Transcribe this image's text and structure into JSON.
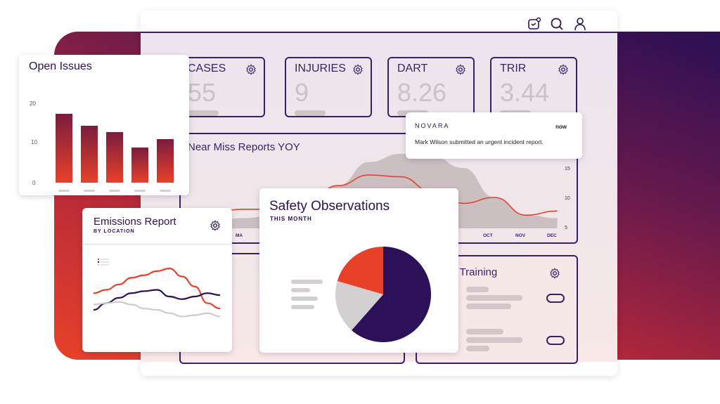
{
  "header": {
    "icons": [
      "calendar-notification-icon",
      "search-icon",
      "user-icon"
    ]
  },
  "kpis": [
    {
      "label": "CASES",
      "value": "55"
    },
    {
      "label": "INJURIES",
      "value": "9"
    },
    {
      "label": "DART",
      "value": "8.26"
    },
    {
      "label": "TRIR",
      "value": "3.44"
    }
  ],
  "near_miss": {
    "title": "Near Miss Reports YOY",
    "y_ticks": [
      "15",
      "10",
      "5"
    ],
    "x_labels": [
      "MA",
      "OCT",
      "NOV",
      "DEC"
    ],
    "chart_data": {
      "type": "area",
      "ylim": [
        5,
        17
      ],
      "series_area": [
        6,
        6.5,
        7,
        8,
        12,
        16,
        17.4,
        17,
        15,
        10,
        7,
        6.5
      ],
      "series_line": [
        7.5,
        8,
        8,
        9,
        12,
        13.8,
        13.5,
        11,
        9,
        10,
        7,
        7.7
      ]
    }
  },
  "training": {
    "title": "ed Training"
  },
  "notification": {
    "brand": "NOVARA",
    "time": "now",
    "message": "Mark Wilson submitted an urgent incident report."
  },
  "open_issues": {
    "title": "Open Issues",
    "y_ticks": [
      "20",
      "10",
      "0"
    ],
    "chart_data": {
      "type": "bar",
      "ylim": [
        0,
        20
      ],
      "values": [
        17.5,
        14.5,
        12.8,
        9,
        11
      ],
      "colors": [
        "#7a1c3e",
        "#e8412a"
      ]
    }
  },
  "emissions": {
    "title": "Emissions Report",
    "subtitle": "BY LOCATION",
    "chart_data": {
      "type": "line",
      "ylim": [
        0,
        100
      ],
      "series": [
        {
          "color": "#e8412a",
          "values": [
            45,
            50,
            58,
            68,
            72,
            78,
            82,
            70,
            55,
            30,
            22
          ]
        },
        {
          "color": "#2c1250",
          "values": [
            20,
            30,
            38,
            45,
            48,
            50,
            40,
            36,
            40,
            45,
            42
          ]
        },
        {
          "color": "#d0cccd",
          "values": [
            28,
            30,
            32,
            28,
            22,
            20,
            15,
            10,
            12,
            15,
            10
          ]
        }
      ]
    }
  },
  "safety": {
    "title": "Safety Observations",
    "subtitle": "THIS MONTH",
    "chart_data": {
      "type": "pie",
      "values": [
        0.615,
        0.18,
        0.205
      ],
      "colors": [
        "#2c1058",
        "#d3d0d1",
        "#e8412a"
      ]
    }
  }
}
